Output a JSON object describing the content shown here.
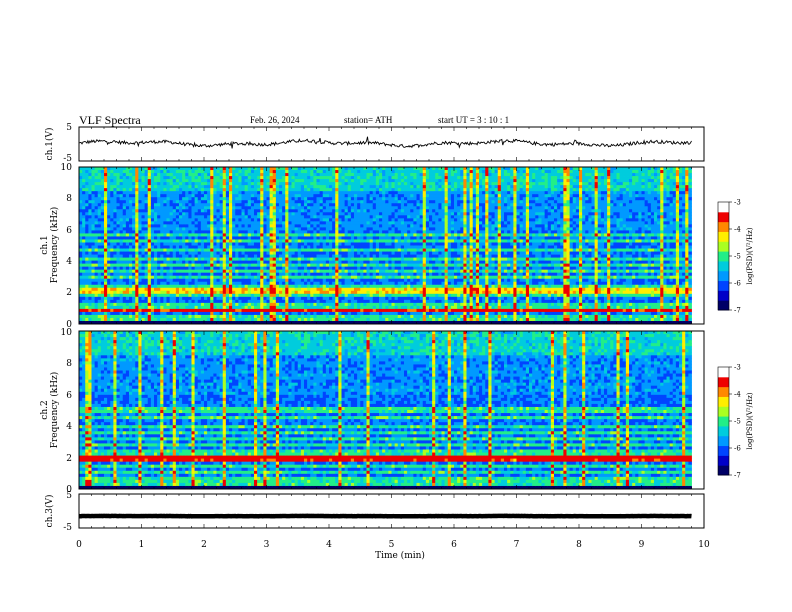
{
  "header": {
    "title": "VLF  Spectra",
    "date": "Feb. 26, 2024",
    "station": "station= ATH",
    "start_ut": "start  UT  =    3  : 10 : 1"
  },
  "colors": {
    "scale": [
      "#000066",
      "#0000c8",
      "#0044ff",
      "#0099ff",
      "#00ccdd",
      "#22ee88",
      "#aaff22",
      "#ffee00",
      "#ff8800",
      "#ee0000",
      "#ffffff"
    ],
    "waveform": "#000000"
  },
  "chart_data": [
    {
      "type": "line",
      "name": "ch1-waveform",
      "ylabel": "ch.1(V)",
      "ylim": [
        -5,
        5
      ],
      "yticks": [
        "5",
        "-5"
      ],
      "xlim": [
        0,
        10
      ],
      "baseline": 0.2,
      "noise_amplitude": 0.8
    },
    {
      "type": "heatmap",
      "name": "ch1-spectrogram",
      "ylabel": "ch.1\nFrequency  (kHz)",
      "ylim": [
        0,
        10
      ],
      "yticks": [
        "10",
        "8",
        "6",
        "4",
        "2",
        "0"
      ],
      "xlim": [
        0,
        9.8
      ],
      "colorbar": {
        "label": "log(PSD)(V²/Hz)",
        "range": [
          -7,
          -3
        ],
        "ticks": [
          "-3",
          "-4",
          "-5",
          "-6",
          "-7"
        ]
      },
      "bands_khz": [
        0.2,
        0.5,
        0.8,
        1.0,
        1.3,
        1.9,
        2.1,
        2.3,
        3.0,
        3.3,
        3.7,
        4.2,
        4.7,
        5.3,
        5.7
      ],
      "bright_band_khz": [
        0.75,
        1.0
      ]
    },
    {
      "type": "heatmap",
      "name": "ch2-spectrogram",
      "ylabel": "ch.2\nFrequency  (kHz)",
      "ylim": [
        0,
        10
      ],
      "yticks": [
        "10",
        "8",
        "6",
        "4",
        "2",
        "0"
      ],
      "xlim": [
        0,
        9.8
      ],
      "colorbar": {
        "label": "log(PSD)(V²/Hz)",
        "range": [
          -7,
          -3
        ],
        "ticks": [
          "-3",
          "-4",
          "-5",
          "-6",
          "-7"
        ]
      },
      "bands_khz": [
        0.3,
        0.6,
        1.0,
        1.4,
        1.9,
        2.1,
        2.4,
        2.8,
        3.2,
        3.5,
        4.0,
        4.5,
        5.0
      ],
      "bright_band_khz": [
        1.8,
        2.2
      ]
    },
    {
      "type": "line",
      "name": "ch3-waveform",
      "ylabel": "ch.3(V)",
      "ylim": [
        -5,
        5
      ],
      "yticks": [
        "5",
        "-5"
      ],
      "xlim": [
        0,
        10
      ],
      "baseline": -1.5,
      "noise_amplitude": 0.05
    }
  ],
  "xaxis": {
    "label": "Time  (min)",
    "ticks": [
      "0",
      "1",
      "2",
      "3",
      "4",
      "5",
      "6",
      "7",
      "8",
      "9",
      "10"
    ]
  }
}
